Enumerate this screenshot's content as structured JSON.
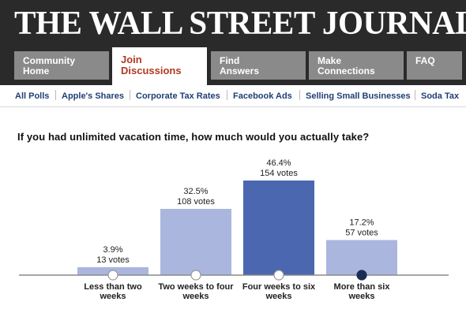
{
  "masthead": "THE WALL STREET JOURNAL.",
  "tabs": [
    {
      "line1": "Community",
      "line2": "Home",
      "active": false
    },
    {
      "line1": "Join",
      "line2": "Discussions",
      "active": true
    },
    {
      "line1": "Find",
      "line2": "Answers",
      "active": false
    },
    {
      "line1": "Make",
      "line2": "Connections",
      "active": false
    },
    {
      "line1": "FAQ",
      "line2": "",
      "active": false
    }
  ],
  "poll_nav": [
    "All Polls",
    "Apple's Shares",
    "Corporate Tax Rates",
    "Facebook Ads",
    "Selling Small Businesses",
    "Soda Tax"
  ],
  "question": "If you had unlimited vacation time, how much would you actually take?",
  "colors": {
    "header_bg": "#2a2a2a",
    "tab_bg": "#8a8a8a",
    "active_tab_text": "#b23a22",
    "nav_text": "#1f3f73",
    "bar": "#aab6de",
    "bar_highlight": "#4a67b0",
    "selected_marker": "#1c2d52"
  },
  "chart_data": {
    "type": "bar",
    "categories": [
      [
        "Less than two",
        "weeks"
      ],
      [
        "Two weeks to four",
        "weeks"
      ],
      [
        "Four weeks to six",
        "weeks"
      ],
      [
        "More than six",
        "weeks"
      ]
    ],
    "values": [
      3.9,
      32.5,
      46.4,
      17.2
    ],
    "percent_labels": [
      "3.9%",
      "32.5%",
      "46.4%",
      "17.2%"
    ],
    "vote_labels": [
      "13 votes",
      "108 votes",
      "154 votes",
      "57 votes"
    ],
    "highlighted_index": 2,
    "selected_index": 3,
    "ylim": [
      0,
      46.4
    ]
  }
}
